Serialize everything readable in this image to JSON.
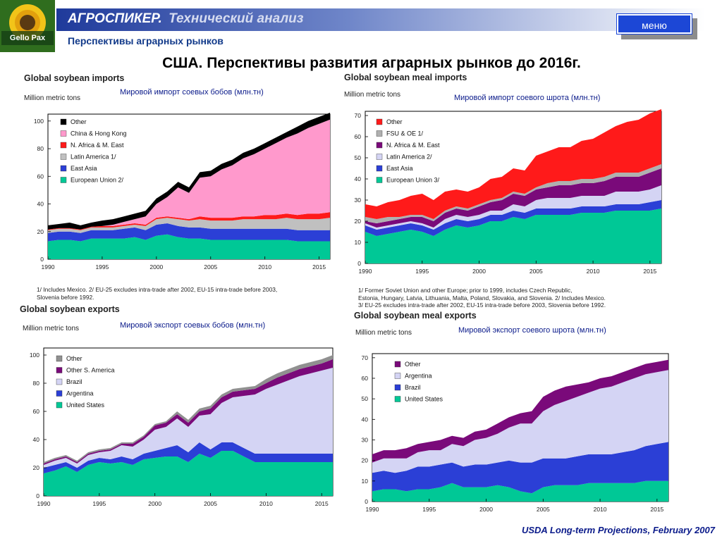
{
  "header": {
    "brand": "АГРОСПИКЕР.",
    "section": "Технический анализ",
    "menu_label": "меню",
    "logo_text": "Gello Pax"
  },
  "subtitle": "Перспективы аграрных рынков",
  "title": "США. Перспективы развития аграрных рынков до 2016г.",
  "footer": "USDA Long-term Projections, February 2007",
  "panels": [
    {
      "title": "Global soybean imports",
      "unit": "Million metric tons",
      "ru": "Мировой импорт соевых бобов  (млн.тн)",
      "note_lines": [
        "1/ Includes Mexico.  2/ EU-25 excludes intra-trade after 2002, EU-15 intra-trade before 2003,",
        "Slovenia before 1992."
      ]
    },
    {
      "title": "Global soybean meal imports",
      "unit": "Million metric tons",
      "ru": "Мировой импорт соевого шрота  (млн.тн)",
      "note_lines": [
        "1/ Former Soviet Union and other Europe; prior to 1999, includes Czech Republic,",
        "Estonia, Hungary, Latvia, Lithuania, Malta, Poland, Slovakia, and Slovenia.  2/ Includes Mexico.",
        "3/ EU-25 excludes intra-trade after 2002, EU-15 intra-trade before 2003, Slovenia before 1992."
      ]
    },
    {
      "title": "Global soybean exports",
      "unit": "Million metric tons",
      "ru": "Мировой экспорт соевых бобов  (млн.тн)",
      "note_lines": []
    },
    {
      "title": "Global soybean meal exports",
      "unit": "Million metric tons",
      "ru": "Мировой экспорт соевого шрота  (млн.тн)",
      "note_lines": []
    }
  ],
  "chart_data": [
    {
      "type": "area",
      "stacked": true,
      "title": "Global soybean imports",
      "ylabel": "Million metric tons",
      "ylim": [
        0,
        105
      ],
      "yticks": [
        0,
        20,
        40,
        60,
        80,
        100
      ],
      "xticks": [
        1990,
        1995,
        2000,
        2005,
        2010,
        2015
      ],
      "x": [
        1990,
        1991,
        1992,
        1993,
        1994,
        1995,
        1996,
        1997,
        1998,
        1999,
        2000,
        2001,
        2002,
        2003,
        2004,
        2005,
        2006,
        2007,
        2008,
        2009,
        2010,
        2011,
        2012,
        2013,
        2014,
        2015,
        2016
      ],
      "series": [
        {
          "name": "European Union 2/",
          "color": "#00c896",
          "values": [
            13,
            14,
            14,
            13,
            15,
            15,
            15,
            15,
            16,
            14,
            17,
            18,
            16,
            15,
            15,
            14,
            14,
            14,
            14,
            14,
            14,
            14,
            14,
            13,
            13,
            13,
            13
          ]
        },
        {
          "name": "East Asia",
          "color": "#2b3fd6",
          "values": [
            6,
            6,
            6,
            6,
            6,
            6,
            6,
            7,
            7,
            7,
            8,
            8,
            8,
            8,
            8,
            8,
            8,
            8,
            8,
            8,
            8,
            8,
            8,
            8,
            8,
            8,
            8
          ]
        },
        {
          "name": "Latin America 1/",
          "color": "#c0c0c0",
          "values": [
            2,
            2,
            2,
            2,
            2,
            2,
            2,
            2,
            2,
            3,
            4,
            4,
            5,
            5,
            6,
            6,
            6,
            6,
            7,
            7,
            7,
            7,
            8,
            8,
            8,
            8,
            9
          ]
        },
        {
          "name": "N. Africa & M. East",
          "color": "#ff1a1a",
          "values": [
            0.5,
            0.5,
            0.5,
            0.5,
            0.5,
            1,
            1,
            1,
            1,
            1,
            1,
            1,
            1,
            1,
            2,
            2,
            2,
            2,
            2,
            2,
            3,
            3,
            3,
            3,
            4,
            4,
            4
          ]
        },
        {
          "name": "China & Hong Kong",
          "color": "#ff99cc",
          "values": [
            0,
            0,
            0,
            0,
            0,
            0,
            1,
            2,
            3,
            6,
            10,
            14,
            22,
            19,
            28,
            30,
            35,
            38,
            42,
            45,
            48,
            52,
            55,
            59,
            62,
            65,
            67
          ]
        },
        {
          "name": "Other",
          "color": "#000000",
          "values": [
            3,
            3,
            4,
            3,
            3,
            4,
            4,
            4,
            4,
            4,
            4,
            4,
            4,
            4,
            4,
            4,
            4,
            4,
            4,
            4,
            4,
            4,
            4,
            5,
            5,
            5,
            5
          ]
        }
      ]
    },
    {
      "type": "area",
      "stacked": true,
      "title": "Global soybean meal imports",
      "ylabel": "Million metric tons",
      "ylim": [
        0,
        72
      ],
      "yticks": [
        0,
        10,
        20,
        30,
        40,
        50,
        60,
        70
      ],
      "xticks": [
        1990,
        1995,
        2000,
        2005,
        2010,
        2015
      ],
      "x": [
        1990,
        1991,
        1992,
        1993,
        1994,
        1995,
        1996,
        1997,
        1998,
        1999,
        2000,
        2001,
        2002,
        2003,
        2004,
        2005,
        2006,
        2007,
        2008,
        2009,
        2010,
        2011,
        2012,
        2013,
        2014,
        2015,
        2016
      ],
      "series": [
        {
          "name": "European Union 3/",
          "color": "#00c896",
          "values": [
            15,
            13,
            14,
            15,
            16,
            15,
            13,
            16,
            18,
            17,
            18,
            20,
            20,
            22,
            21,
            23,
            23,
            23,
            23,
            24,
            24,
            24,
            25,
            25,
            25,
            25,
            26
          ]
        },
        {
          "name": "East Asia",
          "color": "#2b3fd6",
          "values": [
            3,
            3,
            3,
            3,
            3,
            3,
            3,
            3,
            3,
            3,
            3,
            3,
            3,
            3,
            3,
            3,
            3,
            3,
            3,
            3,
            3,
            3,
            3,
            3,
            3,
            4,
            4
          ]
        },
        {
          "name": "Latin America 2/",
          "color": "#d4d4f4",
          "values": [
            1,
            1,
            1,
            1,
            1,
            1,
            1,
            2,
            2,
            2,
            2,
            2,
            2,
            3,
            3,
            4,
            5,
            5,
            5,
            5,
            5,
            5,
            6,
            6,
            6,
            6,
            7
          ]
        },
        {
          "name": "N. Africa & M. East",
          "color": "#7a0a7a",
          "values": [
            1,
            2,
            2,
            2,
            2,
            3,
            3,
            3,
            3,
            3,
            4,
            4,
            5,
            5,
            5,
            5,
            5,
            6,
            6,
            6,
            6,
            7,
            7,
            7,
            7,
            8,
            8
          ]
        },
        {
          "name": "FSU & OE 1/",
          "color": "#b0b0b0",
          "values": [
            2,
            2,
            2,
            1,
            1,
            1,
            1,
            1,
            1,
            1,
            1,
            1,
            1,
            1,
            1,
            1,
            2,
            2,
            2,
            2,
            2,
            2,
            2,
            2,
            2,
            2,
            2
          ]
        },
        {
          "name": "Other",
          "color": "#ff1a1a",
          "values": [
            6,
            6,
            7,
            8,
            9,
            10,
            9,
            9,
            8,
            8,
            8,
            10,
            10,
            11,
            11,
            15,
            15,
            16,
            16,
            18,
            19,
            21,
            22,
            24,
            25,
            26,
            26
          ]
        }
      ]
    },
    {
      "type": "area",
      "stacked": true,
      "title": "Global soybean exports",
      "ylabel": "Million metric tons",
      "ylim": [
        0,
        105
      ],
      "yticks": [
        0,
        20,
        40,
        60,
        80,
        100
      ],
      "xticks": [
        1990,
        1995,
        2000,
        2005,
        2010,
        2015
      ],
      "x": [
        1990,
        1991,
        1992,
        1993,
        1994,
        1995,
        1996,
        1997,
        1998,
        1999,
        2000,
        2001,
        2002,
        2003,
        2004,
        2005,
        2006,
        2007,
        2008,
        2009,
        2010,
        2011,
        2012,
        2013,
        2014,
        2015,
        2016
      ],
      "series": [
        {
          "name": "United States",
          "color": "#00c896",
          "values": [
            16,
            18,
            21,
            17,
            22,
            24,
            23,
            24,
            22,
            26,
            27,
            28,
            28,
            24,
            30,
            27,
            32,
            32,
            28,
            24,
            24,
            24,
            24,
            24,
            24,
            24,
            24
          ]
        },
        {
          "name": "Argentina",
          "color": "#2b3fd6",
          "values": [
            4,
            4,
            3,
            3,
            3,
            3,
            3,
            4,
            4,
            4,
            5,
            6,
            8,
            7,
            8,
            6,
            6,
            6,
            6,
            6,
            6,
            6,
            6,
            6,
            6,
            6,
            6
          ]
        },
        {
          "name": "Brazil",
          "color": "#d4d4f4",
          "values": [
            2,
            3,
            3,
            3,
            4,
            4,
            6,
            8,
            9,
            10,
            15,
            15,
            19,
            18,
            19,
            25,
            28,
            32,
            37,
            42,
            46,
            49,
            52,
            55,
            57,
            59,
            61
          ]
        },
        {
          "name": "Other S. America",
          "color": "#7a0a7a",
          "values": [
            1,
            1,
            1,
            1,
            1,
            1,
            1,
            1,
            2,
            2,
            3,
            3,
            3,
            3,
            3,
            4,
            4,
            4,
            4,
            4,
            4,
            5,
            5,
            5,
            5,
            5,
            6
          ]
        },
        {
          "name": "Other",
          "color": "#909090",
          "values": [
            1,
            1,
            1,
            1,
            1,
            1,
            1,
            1,
            1,
            1,
            1,
            1,
            2,
            2,
            2,
            2,
            2,
            2,
            2,
            2,
            3,
            3,
            3,
            3,
            3,
            3,
            3
          ]
        }
      ]
    },
    {
      "type": "area",
      "stacked": true,
      "title": "Global soybean meal exports",
      "ylabel": "Million metric tons",
      "ylim": [
        0,
        72
      ],
      "yticks": [
        0,
        10,
        20,
        30,
        40,
        50,
        60,
        70
      ],
      "xticks": [
        1990,
        1995,
        2000,
        2005,
        2010,
        2015
      ],
      "x": [
        1990,
        1991,
        1992,
        1993,
        1994,
        1995,
        1996,
        1997,
        1998,
        1999,
        2000,
        2001,
        2002,
        2003,
        2004,
        2005,
        2006,
        2007,
        2008,
        2009,
        2010,
        2011,
        2012,
        2013,
        2014,
        2015,
        2016
      ],
      "series": [
        {
          "name": "United States",
          "color": "#00c896",
          "values": [
            5,
            6,
            6,
            5,
            6,
            6,
            7,
            9,
            7,
            7,
            7,
            8,
            7,
            5,
            4,
            7,
            8,
            8,
            8,
            9,
            9,
            9,
            9,
            9,
            10,
            10,
            10
          ]
        },
        {
          "name": "Brazil",
          "color": "#2b3fd6",
          "values": [
            9,
            9,
            8,
            10,
            11,
            11,
            11,
            10,
            10,
            11,
            11,
            11,
            13,
            14,
            15,
            14,
            13,
            13,
            14,
            14,
            14,
            14,
            15,
            16,
            17,
            18,
            19
          ]
        },
        {
          "name": "Argentina",
          "color": "#d4d4f4",
          "values": [
            5,
            6,
            7,
            6,
            7,
            8,
            7,
            9,
            10,
            12,
            13,
            14,
            16,
            19,
            19,
            23,
            26,
            28,
            29,
            30,
            32,
            33,
            34,
            35,
            35,
            35,
            35
          ]
        },
        {
          "name": "Other",
          "color": "#7a0a7a",
          "values": [
            4,
            4,
            4,
            5,
            4,
            4,
            5,
            4,
            4,
            4,
            4,
            5,
            5,
            5,
            6,
            7,
            7,
            7,
            6,
            5,
            5,
            5,
            5,
            5,
            5,
            5,
            5
          ]
        }
      ]
    }
  ]
}
